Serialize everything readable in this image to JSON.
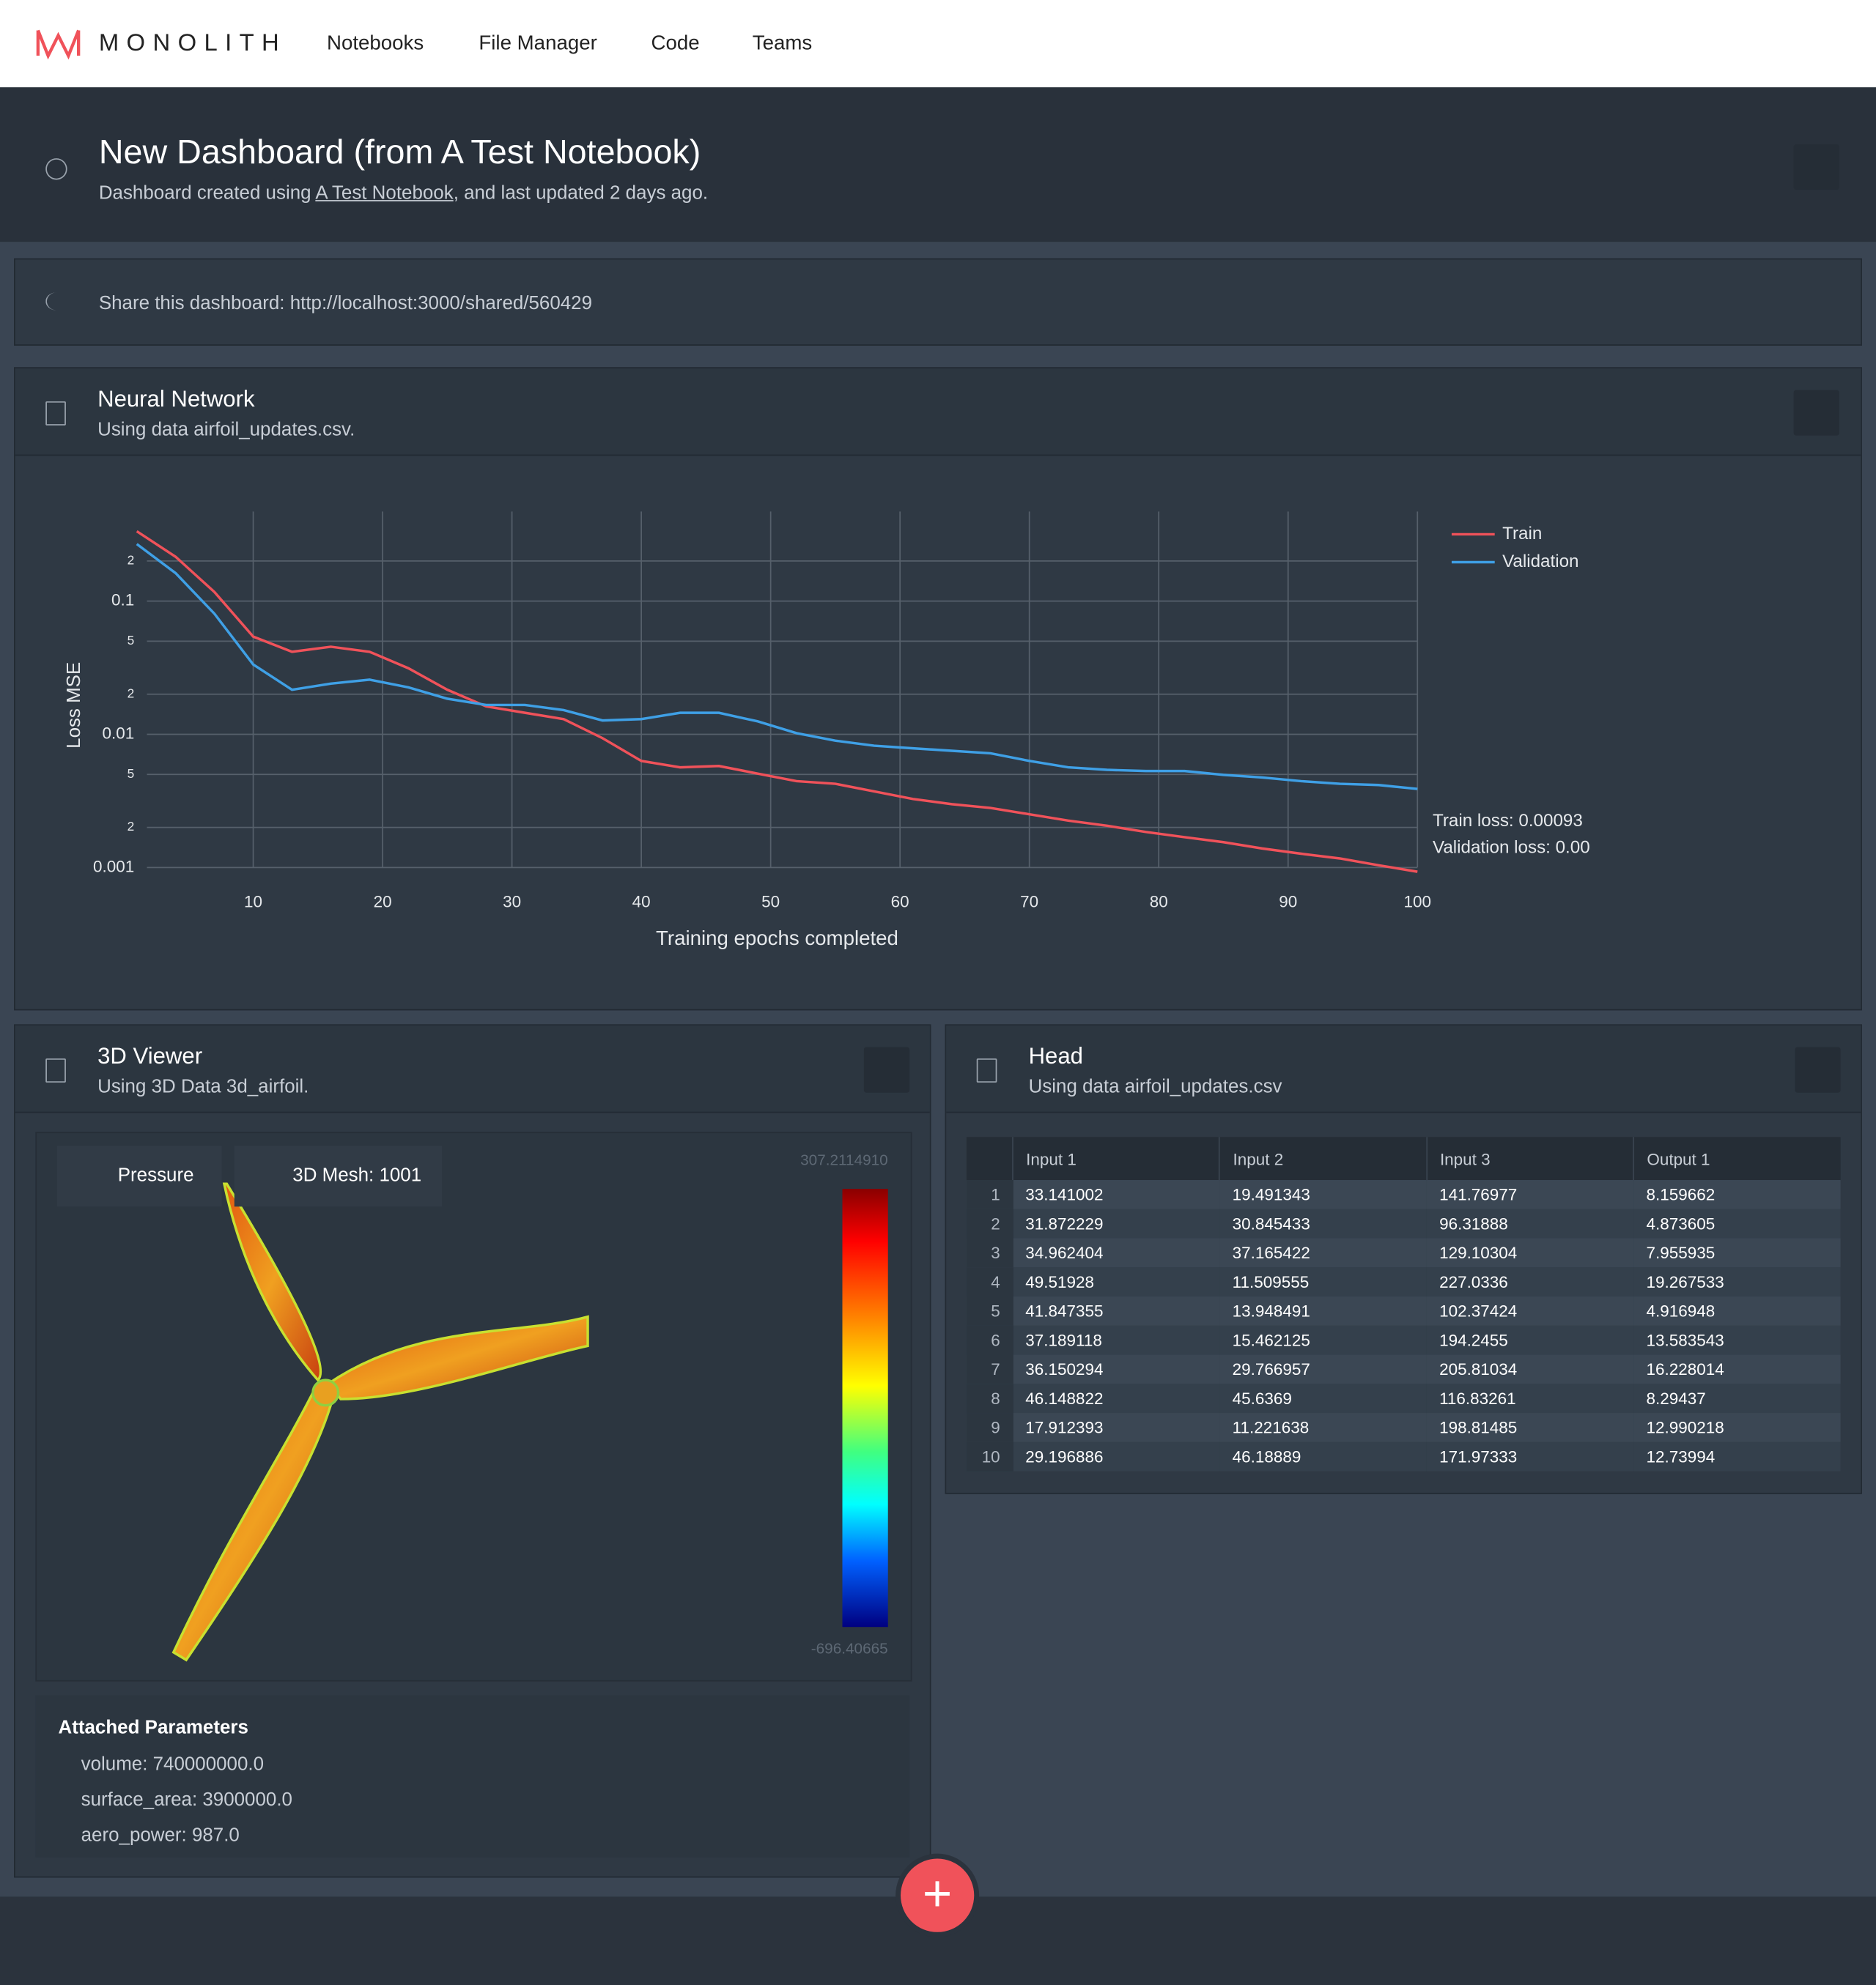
{
  "nav": {
    "brand": "MONOLITH",
    "items": [
      "Notebooks",
      "File Manager",
      "Code",
      "Teams"
    ]
  },
  "header": {
    "title": "New Dashboard (from A Test Notebook)",
    "subtitle_before": "Dashboard created using ",
    "subtitle_link": "A Test Notebook",
    "subtitle_after": ", and last updated 2 days ago."
  },
  "share": "Share this dashboard: http://localhost:3000/shared/560429",
  "chart_panel": {
    "title": "Neural Network",
    "subtitle": "Using data airfoil_updates.csv."
  },
  "chart_data": {
    "type": "line",
    "log_y": true,
    "grid": true,
    "legend": "upper right",
    "x_label": "Training epochs completed",
    "y_label": "Loss MSE",
    "x": [
      1,
      4,
      7,
      10,
      13,
      16,
      19,
      22,
      25,
      28,
      31,
      34,
      37,
      40,
      43,
      46,
      49,
      52,
      55,
      58,
      61,
      64,
      67,
      70,
      73,
      76,
      79,
      82,
      85,
      88,
      91,
      94,
      97,
      100
    ],
    "series": [
      {
        "name": "Train",
        "color": "#f0525a",
        "values": [
          0.334,
          0.215,
          0.117,
          0.0541,
          0.0416,
          0.0454,
          0.0416,
          0.0313,
          0.0216,
          0.0162,
          0.0145,
          0.013,
          0.00936,
          0.00631,
          0.00565,
          0.00578,
          0.00507,
          0.00445,
          0.00425,
          0.00373,
          0.00327,
          0.00299,
          0.0028,
          0.00251,
          0.00225,
          0.00206,
          0.00185,
          0.00169,
          0.00155,
          0.00139,
          0.00127,
          0.00117,
          0.00104,
          0.00093
        ]
      },
      {
        "name": "Validation",
        "color": "#3fa0e6",
        "values": [
          0.268,
          0.162,
          0.0804,
          0.0334,
          0.0216,
          0.024,
          0.0257,
          0.0225,
          0.0185,
          0.0166,
          0.0166,
          0.0152,
          0.0127,
          0.013,
          0.0145,
          0.0145,
          0.0125,
          0.0102,
          0.00896,
          0.00821,
          0.00785,
          0.00752,
          0.0072,
          0.00631,
          0.00565,
          0.00541,
          0.0053,
          0.0053,
          0.00496,
          0.00474,
          0.00445,
          0.00425,
          0.00416,
          0.00389
        ]
      }
    ],
    "xlim": [
      1,
      100
    ],
    "xticks": [
      10,
      20,
      30,
      40,
      50,
      60,
      70,
      80,
      90,
      100
    ],
    "ylim": [
      0.0009,
      0.47
    ],
    "yticks": [
      0.001,
      {
        "value": 0.002,
        "label": "2"
      },
      {
        "value": 0.005,
        "label": "5"
      },
      0.01,
      {
        "value": 0.02,
        "label": "2"
      },
      {
        "value": 0.05,
        "label": "5"
      },
      0.1,
      {
        "value": 0.2,
        "label": "2"
      }
    ],
    "annotations": [
      "Train loss: 0.00093",
      "Validation loss: 0.00"
    ]
  },
  "viewer": {
    "title": "3D Viewer",
    "subtitle": "Using 3D Data 3d_airfoil.",
    "selects": [
      "Pressure",
      "3D Mesh: 1001"
    ],
    "scale_max": "307.2114910",
    "scale_min": "-696.40665",
    "params_title": "Attached Parameters",
    "params": [
      "volume: 740000000.0",
      "surface_area: 3900000.0",
      "aero_power: 987.0"
    ]
  },
  "table_panel": {
    "title": "Head",
    "subtitle": "Using data airfoil_updates.csv"
  },
  "table": {
    "columns": [
      "Input 1",
      "Input 2",
      "Input 3",
      "Output 1"
    ],
    "rows": [
      [
        "1",
        "33.141002",
        "19.491343",
        "141.76977",
        "8.159662"
      ],
      [
        "2",
        "31.872229",
        "30.845433",
        "96.31888",
        "4.873605"
      ],
      [
        "3",
        "34.962404",
        "37.165422",
        "129.10304",
        "7.955935"
      ],
      [
        "4",
        "49.51928",
        "11.509555",
        "227.0336",
        "19.267533"
      ],
      [
        "5",
        "41.847355",
        "13.948491",
        "102.37424",
        "4.916948"
      ],
      [
        "6",
        "37.189118",
        "15.462125",
        "194.2455",
        "13.583543"
      ],
      [
        "7",
        "36.150294",
        "29.766957",
        "205.81034",
        "16.228014"
      ],
      [
        "8",
        "46.148822",
        "45.6369",
        "116.83261",
        "8.29437"
      ],
      [
        "9",
        "17.912393",
        "11.221638",
        "198.81485",
        "12.990218"
      ],
      [
        "10",
        "29.196886",
        "46.18889",
        "171.97333",
        "12.73994"
      ]
    ]
  }
}
